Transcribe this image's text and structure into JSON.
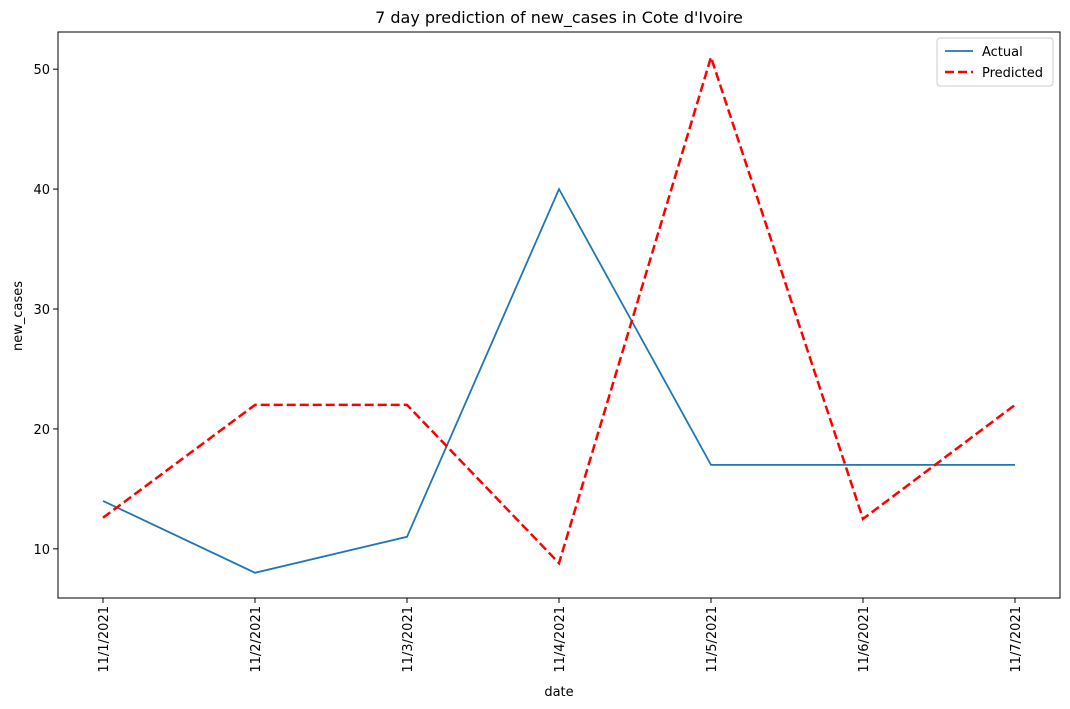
{
  "chart_data": {
    "type": "line",
    "title": "7 day prediction of new_cases in Cote d'Ivoire",
    "xlabel": "date",
    "ylabel": "new_cases",
    "categories": [
      "11/1/2021",
      "11/2/2021",
      "11/3/2021",
      "11/4/2021",
      "11/5/2021",
      "11/6/2021",
      "11/7/2021"
    ],
    "yticks": [
      10,
      20,
      30,
      40,
      50
    ],
    "ylim": [
      5.9,
      53.1
    ],
    "grid": false,
    "legend_position": "top-right",
    "series": [
      {
        "name": "Actual",
        "values": [
          14,
          8,
          11,
          40,
          17,
          17,
          17
        ],
        "color": "#1f77b4",
        "style": "solid"
      },
      {
        "name": "Predicted",
        "values": [
          12.6,
          22.0,
          22.0,
          8.8,
          51.0,
          12.5,
          22.0
        ],
        "color": "#ff0000",
        "style": "dashed"
      }
    ]
  }
}
